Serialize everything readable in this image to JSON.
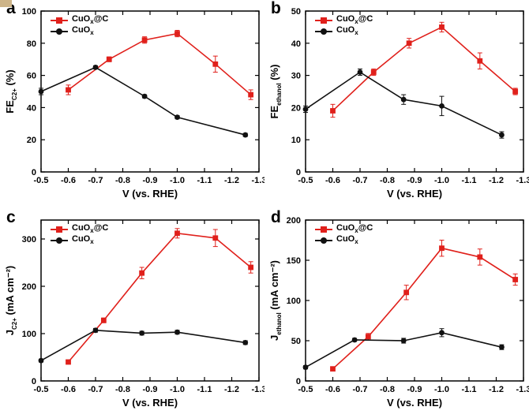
{
  "page": {
    "background": "#ffffff"
  },
  "decor": {
    "corner_color": "#cdb488"
  },
  "colors": {
    "series_red": "#e0201b",
    "series_black": "#111111",
    "axis": "#000000"
  },
  "chart_data": [
    {
      "panel": "a",
      "type": "line",
      "xlabel": "V (vs. RHE)",
      "ylabel": {
        "pre": "FE",
        "sub": "C2+",
        "post": " (%)"
      },
      "xlim": [
        -0.5,
        -1.3
      ],
      "ylim": [
        0,
        100
      ],
      "xticks": [
        -0.5,
        -0.6,
        -0.7,
        -0.8,
        -0.9,
        -1.0,
        -1.1,
        -1.2,
        -1.3
      ],
      "yticks": [
        0,
        20,
        40,
        60,
        80,
        100
      ],
      "grid": false,
      "legend_position": "top-left",
      "series": [
        {
          "name": {
            "pre": "CuO",
            "sub": "x",
            "post": "@C"
          },
          "color": "#e0201b",
          "marker": "square",
          "x": [
            -0.6,
            -0.75,
            -0.88,
            -1.0,
            -1.14,
            -1.27
          ],
          "y": [
            51,
            70,
            82,
            86,
            67,
            48
          ],
          "err": [
            3,
            1.5,
            2,
            2,
            5,
            3
          ]
        },
        {
          "name": {
            "pre": "CuO",
            "sub": "x",
            "post": ""
          },
          "color": "#111111",
          "marker": "circle",
          "x": [
            -0.5,
            -0.7,
            -0.88,
            -1.0,
            -1.25
          ],
          "y": [
            50,
            65,
            47,
            34,
            23
          ],
          "err": [
            2,
            1,
            1,
            1,
            1
          ]
        }
      ]
    },
    {
      "panel": "b",
      "type": "line",
      "xlabel": "V (vs. RHE)",
      "ylabel": {
        "pre": "FE",
        "sub": "ethanol",
        "post": " (%)"
      },
      "xlim": [
        -0.5,
        -1.3
      ],
      "ylim": [
        0,
        50
      ],
      "xticks": [
        -0.5,
        -0.6,
        -0.7,
        -0.8,
        -0.9,
        -1.0,
        -1.1,
        -1.2,
        -1.3
      ],
      "yticks": [
        0,
        10,
        20,
        30,
        40,
        50
      ],
      "grid": false,
      "legend_position": "top-left",
      "series": [
        {
          "name": {
            "pre": "CuO",
            "sub": "x",
            "post": "@C"
          },
          "color": "#e0201b",
          "marker": "square",
          "x": [
            -0.6,
            -0.75,
            -0.88,
            -1.0,
            -1.14,
            -1.27
          ],
          "y": [
            19,
            31,
            40,
            45,
            34.5,
            25
          ],
          "err": [
            2,
            1,
            1.5,
            1.5,
            2.5,
            1
          ]
        },
        {
          "name": {
            "pre": "CuO",
            "sub": "x",
            "post": ""
          },
          "color": "#111111",
          "marker": "circle",
          "x": [
            -0.5,
            -0.7,
            -0.86,
            -1.0,
            -1.22
          ],
          "y": [
            19.5,
            31,
            22.5,
            20.5,
            11.5
          ],
          "err": [
            1,
            1,
            1.5,
            3,
            1
          ]
        }
      ]
    },
    {
      "panel": "c",
      "type": "line",
      "xlabel": "V (vs. RHE)",
      "ylabel": {
        "pre": "J",
        "sub": "C2+",
        "post": " (mA cm⁻²)"
      },
      "xlim": [
        -0.5,
        -1.3
      ],
      "ylim": [
        0,
        340
      ],
      "xticks": [
        -0.5,
        -0.6,
        -0.7,
        -0.8,
        -0.9,
        -1.0,
        -1.1,
        -1.2,
        -1.3
      ],
      "yticks": [
        0,
        100,
        200,
        300
      ],
      "grid": false,
      "legend_position": "top-left",
      "series": [
        {
          "name": {
            "pre": "CuO",
            "sub": "x",
            "post": "@C"
          },
          "color": "#e0201b",
          "marker": "square",
          "x": [
            -0.6,
            -0.73,
            -0.87,
            -1.0,
            -1.14,
            -1.27
          ],
          "y": [
            40,
            128,
            228,
            312,
            302,
            240
          ],
          "err": [
            4,
            5,
            12,
            10,
            18,
            12
          ]
        },
        {
          "name": {
            "pre": "CuO",
            "sub": "x",
            "post": ""
          },
          "color": "#111111",
          "marker": "circle",
          "x": [
            -0.5,
            -0.7,
            -0.87,
            -1.0,
            -1.25
          ],
          "y": [
            43,
            107,
            101,
            103,
            81
          ],
          "err": [
            3,
            4,
            4,
            4,
            4
          ]
        }
      ]
    },
    {
      "panel": "d",
      "type": "line",
      "xlabel": "V (vs. RHE)",
      "ylabel": {
        "pre": "J",
        "sub": "ethanol",
        "post": " (mA cm⁻²)"
      },
      "xlim": [
        -0.5,
        -1.3
      ],
      "ylim": [
        0,
        200
      ],
      "xticks": [
        -0.5,
        -0.6,
        -0.7,
        -0.8,
        -0.9,
        -1.0,
        -1.1,
        -1.2,
        -1.3
      ],
      "yticks": [
        0,
        50,
        100,
        150,
        200
      ],
      "grid": false,
      "legend_position": "top-left",
      "series": [
        {
          "name": {
            "pre": "CuO",
            "sub": "x",
            "post": "@C"
          },
          "color": "#e0201b",
          "marker": "square",
          "x": [
            -0.6,
            -0.73,
            -0.87,
            -1.0,
            -1.14,
            -1.27
          ],
          "y": [
            15,
            55,
            110,
            165,
            154,
            126
          ],
          "err": [
            2,
            4,
            9,
            10,
            10,
            7
          ]
        },
        {
          "name": {
            "pre": "CuO",
            "sub": "x",
            "post": ""
          },
          "color": "#111111",
          "marker": "circle",
          "x": [
            -0.5,
            -0.68,
            -0.86,
            -1.0,
            -1.22
          ],
          "y": [
            17,
            51,
            50,
            60,
            42
          ],
          "err": [
            2,
            2,
            3,
            5,
            3
          ]
        }
      ]
    }
  ]
}
